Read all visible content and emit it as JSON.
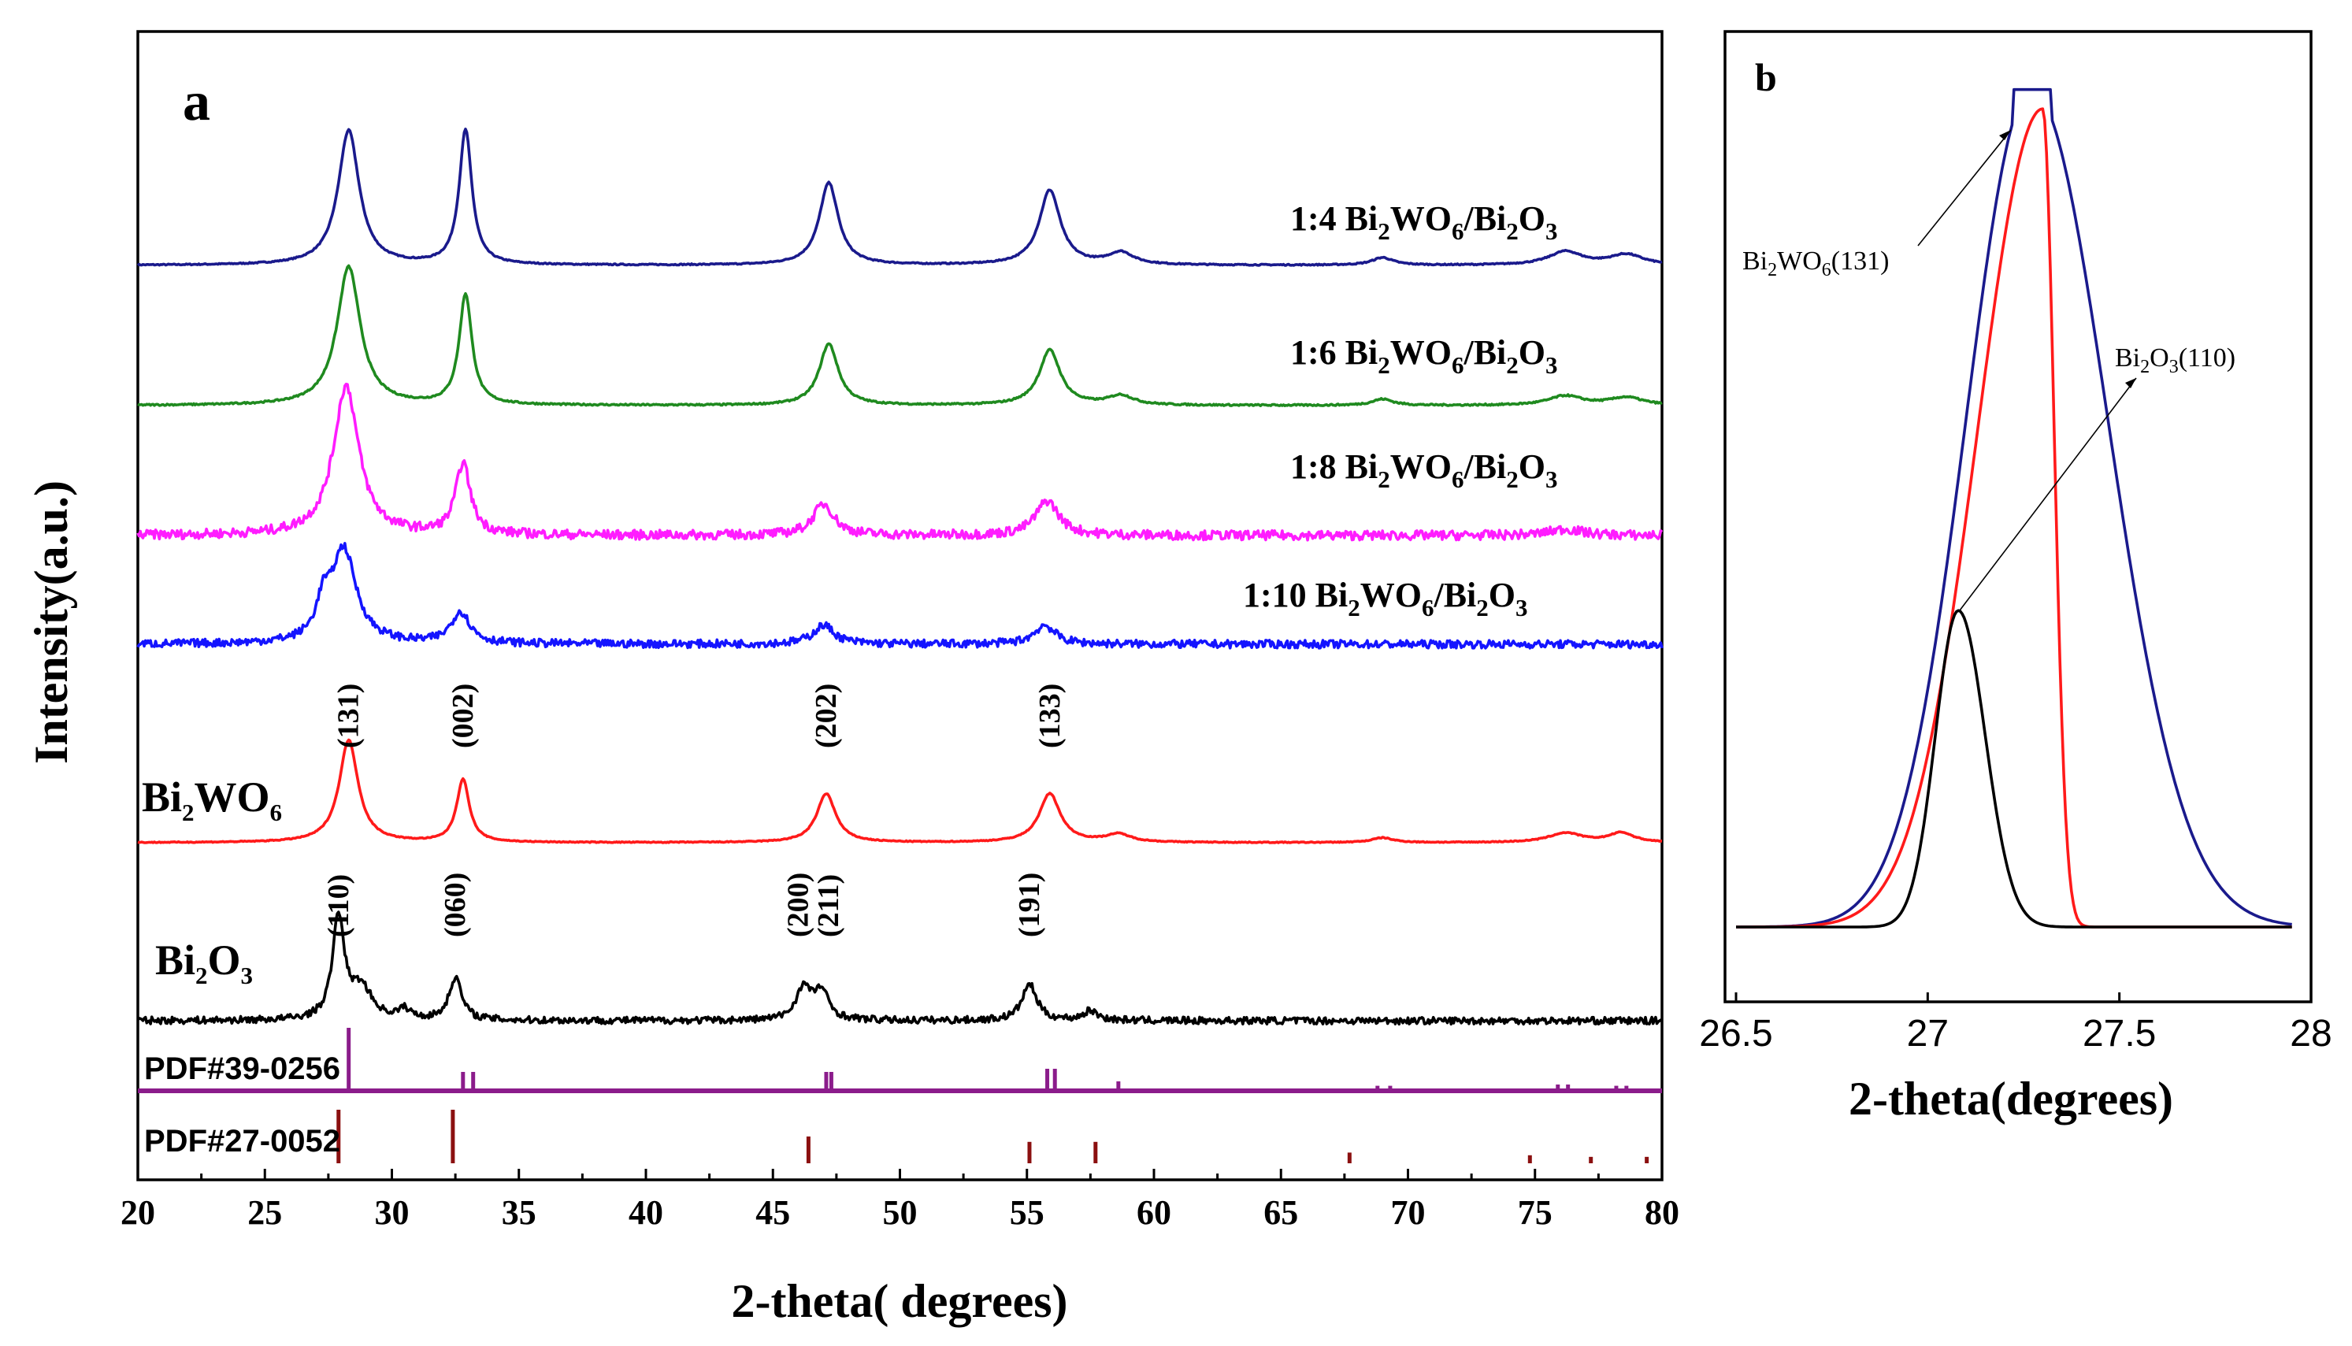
{
  "colors": {
    "ratio_1_4": "#1a1a8c",
    "ratio_1_6": "#1f8a1f",
    "ratio_1_8": "#ff1cff",
    "ratio_1_10": "#1414ff",
    "bi2wo6": "#ff1a1a",
    "bi2o3": "#000000",
    "pdf_39_0256": "#8b1c8b",
    "pdf_27_0052": "#8b1010"
  },
  "chart_data": [
    {
      "panel": "a",
      "type": "line",
      "xlabel": "2-theta( degrees)",
      "ylabel": "Intensity(a.u.)",
      "xlim": [
        20,
        80
      ],
      "x_ticks": [
        "20",
        "25",
        "30",
        "35",
        "40",
        "45",
        "50",
        "55",
        "60",
        "65",
        "70",
        "75",
        "80"
      ],
      "grid": false,
      "series": [
        {
          "key": "ratio_1_4",
          "label": {
            "pre": "1:4 Bi",
            "s1": "2",
            "m1": "WO",
            "s2": "6",
            "m2": "/Bi",
            "s3": "2",
            "m3": "O",
            "s4": "3"
          },
          "peaks": [
            [
              28.3,
              0.9,
              0.5
            ],
            [
              32.9,
              0.9,
              0.3
            ],
            [
              47.2,
              0.55,
              0.45
            ],
            [
              55.9,
              0.5,
              0.5
            ],
            [
              58.7,
              0.08,
              0.6
            ],
            [
              69.0,
              0.05,
              0.5
            ],
            [
              76.2,
              0.09,
              0.8
            ],
            [
              78.6,
              0.07,
              0.8
            ]
          ]
        },
        {
          "key": "ratio_1_6",
          "label": {
            "pre": "1:6 Bi",
            "s1": "2",
            "m1": "WO",
            "s2": "6",
            "m2": "/Bi",
            "s3": "2",
            "m3": "O",
            "s4": "3"
          },
          "peaks": [
            [
              28.3,
              0.88,
              0.55
            ],
            [
              32.9,
              0.7,
              0.3
            ],
            [
              47.2,
              0.39,
              0.45
            ],
            [
              55.9,
              0.35,
              0.5
            ],
            [
              58.7,
              0.06,
              0.6
            ],
            [
              69.0,
              0.04,
              0.5
            ],
            [
              76.2,
              0.06,
              0.8
            ],
            [
              78.6,
              0.05,
              0.8
            ]
          ]
        },
        {
          "key": "ratio_1_8",
          "label": {
            "pre": "1:8 Bi",
            "s1": "2",
            "m1": "WO",
            "s2": "6",
            "m2": "/Bi",
            "s3": "2",
            "m3": "O",
            "s4": "3"
          },
          "peaks": [
            [
              28.2,
              0.95,
              0.6
            ],
            [
              32.8,
              0.45,
              0.35
            ],
            [
              47.0,
              0.2,
              0.5
            ],
            [
              55.8,
              0.22,
              0.55
            ],
            [
              76.2,
              0.04,
              0.8
            ]
          ]
        },
        {
          "key": "ratio_1_10",
          "label": {
            "pre": "1:10 Bi",
            "s1": "2",
            "m1": "WO",
            "s2": "6",
            "m2": "/Bi",
            "s3": "2",
            "m3": "O",
            "s4": "3"
          },
          "peaks": [
            [
              28.1,
              0.6,
              0.6
            ],
            [
              27.3,
              0.2,
              0.3
            ],
            [
              32.7,
              0.2,
              0.45
            ],
            [
              47.0,
              0.12,
              0.5
            ],
            [
              55.7,
              0.12,
              0.5
            ]
          ]
        },
        {
          "key": "bi2wo6",
          "label": {
            "pre": "Bi",
            "s1": "2",
            "m1": "WO",
            "s2": "6"
          },
          "peaks": [
            [
              28.3,
              0.65,
              0.45
            ],
            [
              32.8,
              0.4,
              0.3
            ],
            [
              47.1,
              0.31,
              0.45
            ],
            [
              55.9,
              0.31,
              0.5
            ],
            [
              58.6,
              0.05,
              0.6
            ],
            [
              69.0,
              0.03,
              0.5
            ],
            [
              76.2,
              0.06,
              0.8
            ],
            [
              78.4,
              0.06,
              0.6
            ]
          ],
          "hkl": [
            {
              "text": "(131)",
              "x": 28.3
            },
            {
              "text": "(002)",
              "x": 32.8
            },
            {
              "text": "(202)",
              "x": 47.1
            },
            {
              "text": "(133)",
              "x": 55.9
            }
          ]
        },
        {
          "key": "bi2o3",
          "label": {
            "pre": "Bi",
            "s1": "2",
            "m1": "O",
            "s2": "3"
          },
          "peaks": [
            [
              27.9,
              0.65,
              0.28
            ],
            [
              28.8,
              0.2,
              0.5
            ],
            [
              32.5,
              0.27,
              0.3
            ],
            [
              46.2,
              0.2,
              0.35
            ],
            [
              46.9,
              0.18,
              0.35
            ],
            [
              55.1,
              0.23,
              0.35
            ],
            [
              57.5,
              0.06,
              0.35
            ],
            [
              30.5,
              0.06,
              0.3
            ]
          ],
          "hkl": [
            {
              "text": "(110)",
              "x": 27.9
            },
            {
              "text": "(060)",
              "x": 32.5
            },
            {
              "text": "(200)",
              "x": 46.0
            },
            {
              "text": "(211)",
              "x": 47.2
            },
            {
              "text": "(191)",
              "x": 55.1
            }
          ]
        }
      ],
      "reference_patterns": [
        {
          "key": "pdf_39_0256",
          "label_pre": "PDF#",
          "label_num": "39-0256",
          "lines": [
            [
              28.3,
              1.0
            ],
            [
              32.8,
              0.3
            ],
            [
              33.2,
              0.3
            ],
            [
              47.1,
              0.3
            ],
            [
              47.3,
              0.3
            ],
            [
              55.8,
              0.35
            ],
            [
              56.1,
              0.35
            ],
            [
              58.6,
              0.15
            ],
            [
              68.8,
              0.08
            ],
            [
              69.3,
              0.08
            ],
            [
              75.9,
              0.1
            ],
            [
              76.3,
              0.1
            ],
            [
              78.2,
              0.08
            ],
            [
              78.6,
              0.08
            ]
          ]
        },
        {
          "key": "pdf_27_0052",
          "label_pre": "PDF#",
          "label_num": "27-0052",
          "lines": [
            [
              27.9,
              1.0
            ],
            [
              32.4,
              1.0
            ],
            [
              46.4,
              0.5
            ],
            [
              55.1,
              0.4
            ],
            [
              57.7,
              0.4
            ],
            [
              67.7,
              0.2
            ],
            [
              74.8,
              0.15
            ],
            [
              77.2,
              0.12
            ],
            [
              79.4,
              0.12
            ]
          ]
        }
      ]
    },
    {
      "panel": "b",
      "type": "line",
      "xlabel": "2-theta(degrees)",
      "xlim": [
        26.5,
        28.0
      ],
      "x_ticks": [
        "26.5",
        "27",
        "27.5",
        "28"
      ],
      "grid": false,
      "series": [
        {
          "key": "ratio_1_4",
          "model": "blue",
          "center": 27.29
        },
        {
          "key": "bi2wo6",
          "model": "red",
          "center": 27.29
        },
        {
          "key": "bi2o3",
          "model": "black",
          "center": 27.08
        }
      ],
      "annotations": [
        {
          "pre": "Bi",
          "s1": "2",
          "m1": "WO",
          "s2": "6",
          "post": "(131)"
        },
        {
          "pre": "Bi",
          "s1": "2",
          "m1": "O",
          "s2": "3",
          "post": "(110)"
        }
      ]
    }
  ]
}
